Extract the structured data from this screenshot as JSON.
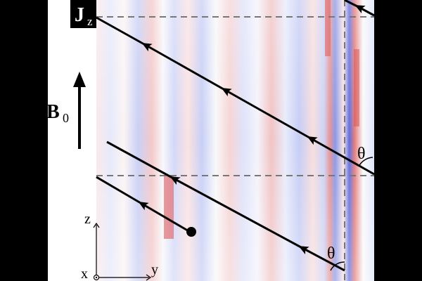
{
  "labels": {
    "current": "J",
    "current_sub": "z",
    "field": "B",
    "field_sub": "0",
    "angle_upper": "θ",
    "angle_lower": "θ",
    "axis_z": "z",
    "axis_y": "y",
    "axis_x": "x"
  }
}
